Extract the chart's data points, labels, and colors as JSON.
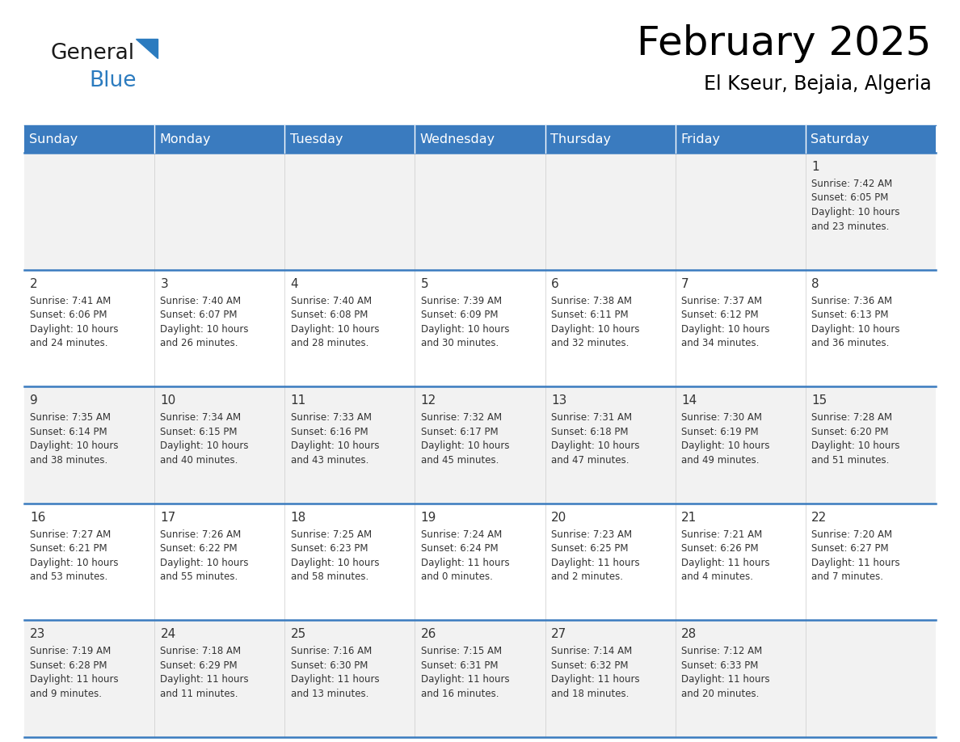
{
  "title": "February 2025",
  "subtitle": "El Kseur, Bejaia, Algeria",
  "header_color": "#3a7bbf",
  "header_text_color": "#ffffff",
  "day_names": [
    "Sunday",
    "Monday",
    "Tuesday",
    "Wednesday",
    "Thursday",
    "Friday",
    "Saturday"
  ],
  "bg_color": "#ffffff",
  "alt_row_color": "#f2f2f2",
  "cell_text_color": "#333333",
  "title_color": "#000000",
  "logo_general_color": "#1a1a1a",
  "logo_blue_color": "#2b7bbf",
  "separator_color": "#3a7bbf",
  "calendar_data": [
    [
      null,
      null,
      null,
      null,
      null,
      null,
      {
        "day": 1,
        "sunrise": "7:42 AM",
        "sunset": "6:05 PM",
        "daylight": "10 hours and 23 minutes."
      }
    ],
    [
      {
        "day": 2,
        "sunrise": "7:41 AM",
        "sunset": "6:06 PM",
        "daylight": "10 hours and 24 minutes."
      },
      {
        "day": 3,
        "sunrise": "7:40 AM",
        "sunset": "6:07 PM",
        "daylight": "10 hours and 26 minutes."
      },
      {
        "day": 4,
        "sunrise": "7:40 AM",
        "sunset": "6:08 PM",
        "daylight": "10 hours and 28 minutes."
      },
      {
        "day": 5,
        "sunrise": "7:39 AM",
        "sunset": "6:09 PM",
        "daylight": "10 hours and 30 minutes."
      },
      {
        "day": 6,
        "sunrise": "7:38 AM",
        "sunset": "6:11 PM",
        "daylight": "10 hours and 32 minutes."
      },
      {
        "day": 7,
        "sunrise": "7:37 AM",
        "sunset": "6:12 PM",
        "daylight": "10 hours and 34 minutes."
      },
      {
        "day": 8,
        "sunrise": "7:36 AM",
        "sunset": "6:13 PM",
        "daylight": "10 hours and 36 minutes."
      }
    ],
    [
      {
        "day": 9,
        "sunrise": "7:35 AM",
        "sunset": "6:14 PM",
        "daylight": "10 hours and 38 minutes."
      },
      {
        "day": 10,
        "sunrise": "7:34 AM",
        "sunset": "6:15 PM",
        "daylight": "10 hours and 40 minutes."
      },
      {
        "day": 11,
        "sunrise": "7:33 AM",
        "sunset": "6:16 PM",
        "daylight": "10 hours and 43 minutes."
      },
      {
        "day": 12,
        "sunrise": "7:32 AM",
        "sunset": "6:17 PM",
        "daylight": "10 hours and 45 minutes."
      },
      {
        "day": 13,
        "sunrise": "7:31 AM",
        "sunset": "6:18 PM",
        "daylight": "10 hours and 47 minutes."
      },
      {
        "day": 14,
        "sunrise": "7:30 AM",
        "sunset": "6:19 PM",
        "daylight": "10 hours and 49 minutes."
      },
      {
        "day": 15,
        "sunrise": "7:28 AM",
        "sunset": "6:20 PM",
        "daylight": "10 hours and 51 minutes."
      }
    ],
    [
      {
        "day": 16,
        "sunrise": "7:27 AM",
        "sunset": "6:21 PM",
        "daylight": "10 hours and 53 minutes."
      },
      {
        "day": 17,
        "sunrise": "7:26 AM",
        "sunset": "6:22 PM",
        "daylight": "10 hours and 55 minutes."
      },
      {
        "day": 18,
        "sunrise": "7:25 AM",
        "sunset": "6:23 PM",
        "daylight": "10 hours and 58 minutes."
      },
      {
        "day": 19,
        "sunrise": "7:24 AM",
        "sunset": "6:24 PM",
        "daylight": "11 hours and 0 minutes."
      },
      {
        "day": 20,
        "sunrise": "7:23 AM",
        "sunset": "6:25 PM",
        "daylight": "11 hours and 2 minutes."
      },
      {
        "day": 21,
        "sunrise": "7:21 AM",
        "sunset": "6:26 PM",
        "daylight": "11 hours and 4 minutes."
      },
      {
        "day": 22,
        "sunrise": "7:20 AM",
        "sunset": "6:27 PM",
        "daylight": "11 hours and 7 minutes."
      }
    ],
    [
      {
        "day": 23,
        "sunrise": "7:19 AM",
        "sunset": "6:28 PM",
        "daylight": "11 hours and 9 minutes."
      },
      {
        "day": 24,
        "sunrise": "7:18 AM",
        "sunset": "6:29 PM",
        "daylight": "11 hours and 11 minutes."
      },
      {
        "day": 25,
        "sunrise": "7:16 AM",
        "sunset": "6:30 PM",
        "daylight": "11 hours and 13 minutes."
      },
      {
        "day": 26,
        "sunrise": "7:15 AM",
        "sunset": "6:31 PM",
        "daylight": "11 hours and 16 minutes."
      },
      {
        "day": 27,
        "sunrise": "7:14 AM",
        "sunset": "6:32 PM",
        "daylight": "11 hours and 18 minutes."
      },
      {
        "day": 28,
        "sunrise": "7:12 AM",
        "sunset": "6:33 PM",
        "daylight": "11 hours and 20 minutes."
      },
      null
    ]
  ]
}
